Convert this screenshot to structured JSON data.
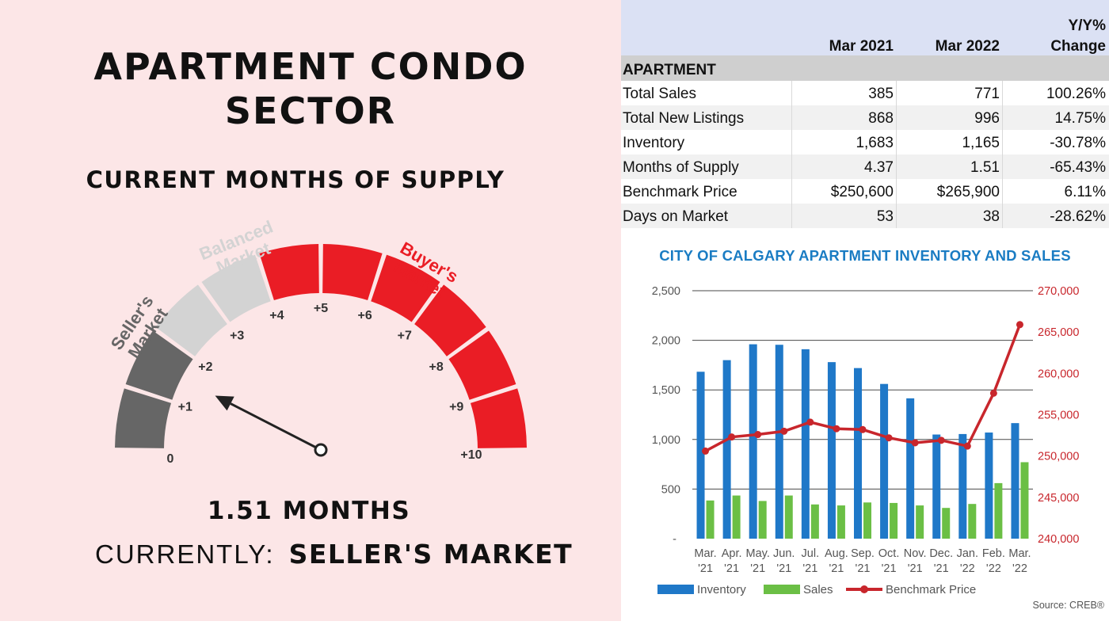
{
  "left": {
    "title_line1": "APARTMENT CONDO",
    "title_line2": "SECTOR",
    "subtitle": "CURRENT MONTHS OF SUPPLY",
    "gauge": {
      "tick_labels": [
        "0",
        "+1",
        "+2",
        "+3",
        "+4",
        "+5",
        "+6",
        "+7",
        "+8",
        "+9",
        "+10"
      ],
      "sellers_label": [
        "Seller's",
        "Market"
      ],
      "balanced_label": [
        "Balanced",
        "Market"
      ],
      "buyers_label": [
        "Buyer's",
        "Market"
      ],
      "needle_value": 1.51,
      "colors": {
        "sellers": "#666666",
        "balanced": "#d3d3d3",
        "buyers": "#ea1d25",
        "needle": "#222222",
        "balanced_text": "#d3d3d3",
        "sellers_text": "#666666",
        "buyers_text": "#ea1d25"
      }
    },
    "months_text": "1.51 MONTHS",
    "current_label": "CURRENTLY:",
    "current_value": "SELLER'S MARKET"
  },
  "table": {
    "headers": [
      "Mar 2021",
      "Mar 2022",
      "Y/Y%",
      "Change"
    ],
    "section": "APARTMENT",
    "rows": [
      {
        "label": "Total Sales",
        "mar2021": "385",
        "mar2022": "771",
        "change": "100.26%"
      },
      {
        "label": "Total New Listings",
        "mar2021": "868",
        "mar2022": "996",
        "change": "14.75%"
      },
      {
        "label": "Inventory",
        "mar2021": "1,683",
        "mar2022": "1,165",
        "change": "-30.78%"
      },
      {
        "label": "Months of Supply",
        "mar2021": "4.37",
        "mar2022": "1.51",
        "change": "-65.43%"
      },
      {
        "label": "Benchmark Price",
        "mar2021": "$250,600",
        "mar2022": "$265,900",
        "change": "6.11%"
      },
      {
        "label": "Days on Market",
        "mar2021": "53",
        "mar2022": "38",
        "change": "-28.62%"
      }
    ]
  },
  "chart_data": {
    "type": "bar",
    "title": "CITY OF CALGARY APARTMENT INVENTORY AND SALES",
    "categories": [
      [
        "Mar.",
        "'21"
      ],
      [
        "Apr.",
        "'21"
      ],
      [
        "May.",
        "'21"
      ],
      [
        "Jun.",
        "'21"
      ],
      [
        "Jul.",
        "'21"
      ],
      [
        "Aug.",
        "'21"
      ],
      [
        "Sep.",
        "'21"
      ],
      [
        "Oct.",
        "'21"
      ],
      [
        "Nov.",
        "'21"
      ],
      [
        "Dec.",
        "'21"
      ],
      [
        "Jan.",
        "'22"
      ],
      [
        "Feb.",
        "'22"
      ],
      [
        "Mar.",
        "'22"
      ]
    ],
    "series": [
      {
        "name": "Inventory",
        "type": "bar",
        "axis": "left",
        "color": "#1f78c8",
        "values": [
          1683,
          1800,
          1960,
          1955,
          1910,
          1780,
          1720,
          1560,
          1415,
          1050,
          1055,
          1070,
          1165
        ]
      },
      {
        "name": "Sales",
        "type": "bar",
        "axis": "left",
        "color": "#6bbf45",
        "values": [
          385,
          435,
          380,
          435,
          345,
          335,
          365,
          360,
          335,
          310,
          350,
          560,
          771
        ]
      },
      {
        "name": "Benchmark Price",
        "type": "line",
        "axis": "right",
        "color": "#c8262c",
        "values": [
          250600,
          252300,
          252600,
          253000,
          254100,
          253300,
          253200,
          252200,
          251600,
          251900,
          251200,
          257600,
          265900
        ]
      }
    ],
    "left_axis": {
      "min": 0,
      "max": 2500,
      "ticks": [
        "-",
        "500",
        "1,000",
        "1,500",
        "2,000",
        "2,500"
      ]
    },
    "right_axis": {
      "min": 240000,
      "max": 270000,
      "ticks": [
        "240,000",
        "245,000",
        "250,000",
        "255,000",
        "260,000",
        "265,000",
        "270,000"
      ]
    },
    "grid": true,
    "legend": "bottom",
    "source": "Source: CREB®"
  }
}
